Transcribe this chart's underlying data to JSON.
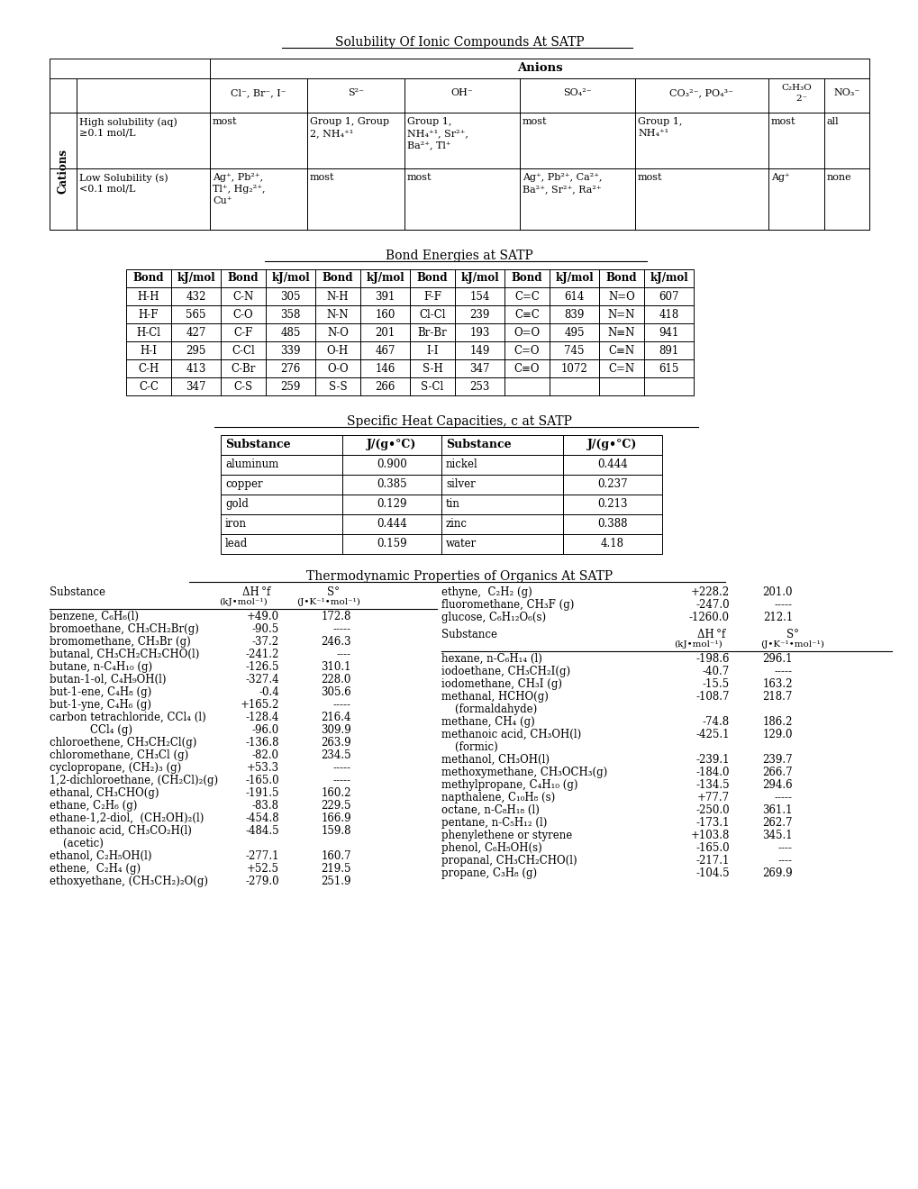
{
  "title_solubility": "Solubility Of Ionic Compounds At SATP",
  "title_bond": "Bond Energies at SATP",
  "title_heat": "Specific Heat Capacities, c at SATP",
  "title_thermo": "Thermodynamic Properties of Organics At SATP",
  "background_color": "#ffffff",
  "bond_data": [
    [
      "H-H",
      "432",
      "C-N",
      "305",
      "N-H",
      "391",
      "F-F",
      "154",
      "C=C",
      "614",
      "N=O",
      "607"
    ],
    [
      "H-F",
      "565",
      "C-O",
      "358",
      "N-N",
      "160",
      "Cl-Cl",
      "239",
      "C≡C",
      "839",
      "N=N",
      "418"
    ],
    [
      "H-Cl",
      "427",
      "C-F",
      "485",
      "N-O",
      "201",
      "Br-Br",
      "193",
      "O=O",
      "495",
      "N≡N",
      "941"
    ],
    [
      "H-I",
      "295",
      "C-Cl",
      "339",
      "O-H",
      "467",
      "I-I",
      "149",
      "C=O",
      "745",
      "C≡N",
      "891"
    ],
    [
      "C-H",
      "413",
      "C-Br",
      "276",
      "O-O",
      "146",
      "S-H",
      "347",
      "C≡O",
      "1072",
      "C=N",
      "615"
    ],
    [
      "C-C",
      "347",
      "C-S",
      "259",
      "S-S",
      "266",
      "S-Cl",
      "253",
      "",
      "",
      "",
      ""
    ]
  ],
  "heat_data": [
    [
      "aluminum",
      "0.900",
      "nickel",
      "0.444"
    ],
    [
      "copper",
      "0.385",
      "silver",
      "0.237"
    ],
    [
      "gold",
      "0.129",
      "tin",
      "0.213"
    ],
    [
      "iron",
      "0.444",
      "zinc",
      "0.388"
    ],
    [
      "lead",
      "0.159",
      "water",
      "4.18"
    ]
  ],
  "thermo_left": [
    [
      "benzene, C₆H₆(l)",
      "+49.0",
      "172.8"
    ],
    [
      "bromoethane, CH₃CH₂Br(g)",
      "-90.5",
      "-----"
    ],
    [
      "bromomethane, CH₃Br (g)",
      "-37.2",
      "246.3"
    ],
    [
      "butanal, CH₃CH₂CH₂CHO(l)",
      "-241.2",
      "----"
    ],
    [
      "butane, n-C₄H₁₀ (g)",
      "-126.5",
      "310.1"
    ],
    [
      "butan-1-ol, C₄H₉OH(l)",
      "-327.4",
      "228.0"
    ],
    [
      "but-1-ene, C₄H₈ (g)",
      "-0.4",
      "305.6"
    ],
    [
      "but-1-yne, C₄H₆ (g)",
      "+165.2",
      "-----"
    ],
    [
      "carbon tetrachloride, CCl₄ (l)",
      "-128.4",
      "216.4"
    ],
    [
      "            CCl₄ (g)",
      "-96.0",
      "309.9"
    ],
    [
      "chloroethene, CH₃CH₂Cl(g)",
      "-136.8",
      "263.9"
    ],
    [
      "chloromethane, CH₃Cl (g)",
      "-82.0",
      "234.5"
    ],
    [
      "cyclopropane, (CH₂)₃ (g)",
      "+53.3",
      "-----"
    ],
    [
      "1,2-dichloroethane, (CH₂Cl)₂(g)",
      "-165.0",
      "-----"
    ],
    [
      "ethanal, CH₃CHO(g)",
      "-191.5",
      "160.2"
    ],
    [
      "ethane, C₂H₆ (g)",
      "-83.8",
      "229.5"
    ],
    [
      "ethane-1,2-diol,  (CH₂OH)₂(l)",
      "-454.8",
      "166.9"
    ],
    [
      "ethanoic acid, CH₃CO₂H(l)",
      "-484.5",
      "159.8"
    ],
    [
      "    (acetic)",
      "",
      ""
    ],
    [
      "ethanol, C₂H₅OH(l)",
      "-277.1",
      "160.7"
    ],
    [
      "ethene,  C₂H₄ (g)",
      "+52.5",
      "219.5"
    ],
    [
      "ethoxyethane, (CH₃CH₂)₂O(g)",
      "-279.0",
      "251.9"
    ]
  ],
  "thermo_right_top": [
    [
      "ethyne,  C₂H₂ (g)",
      "+228.2",
      "201.0"
    ],
    [
      "fluoromethane, CH₃F (g)",
      "-247.0",
      "-----"
    ],
    [
      "glucose, C₆H₁₂O₆(s)",
      "-1260.0",
      "212.1"
    ]
  ],
  "thermo_right": [
    [
      "hexane, n-C₆H₁₄ (l)",
      "-198.6",
      "296.1"
    ],
    [
      "iodoethane, CH₃CH₂I(g)",
      "-40.7",
      "-----"
    ],
    [
      "iodomethane, CH₃I (g)",
      "-15.5",
      "163.2"
    ],
    [
      "methanal, HCHO(g)",
      "-108.7",
      "218.7"
    ],
    [
      "    (formaldahyde)",
      "",
      ""
    ],
    [
      "methane, CH₄ (g)",
      "-74.8",
      "186.2"
    ],
    [
      "methanoic acid, CH₃OH(l)",
      "-425.1",
      "129.0"
    ],
    [
      "    (formic)",
      "",
      ""
    ],
    [
      "methanol, CH₃OH(l)",
      "-239.1",
      "239.7"
    ],
    [
      "methoxymethane, CH₃OCH₃(g)",
      "-184.0",
      "266.7"
    ],
    [
      "methylpropane, C₄H₁₀ (g)",
      "-134.5",
      "294.6"
    ],
    [
      "napthalene, C₁₀H₈ (s)",
      "+77.7",
      "-----"
    ],
    [
      "octane, n-C₈H₁₈ (l)",
      "-250.0",
      "361.1"
    ],
    [
      "pentane, n-C₅H₁₂ (l)",
      "-173.1",
      "262.7"
    ],
    [
      "phenylethene or styrene",
      "+103.8",
      "345.1"
    ],
    [
      "phenol, C₆H₅OH(s)",
      "-165.0",
      "----"
    ],
    [
      "propanal, CH₃CH₂CHO(l)",
      "-217.1",
      "----"
    ],
    [
      "propane, C₃H₈ (g)",
      "-104.5",
      "269.9"
    ]
  ]
}
